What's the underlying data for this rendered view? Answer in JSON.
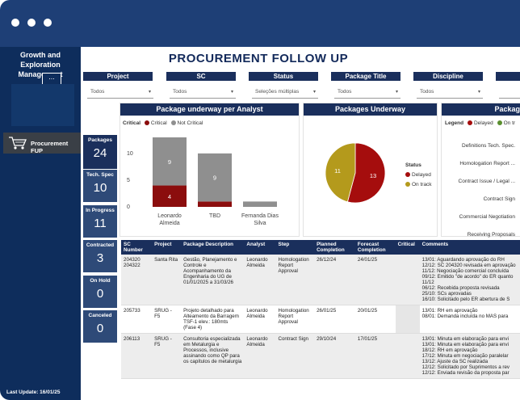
{
  "window": {
    "accent": "#1e3f76"
  },
  "sidebar": {
    "brand": "Growth and Exploration Management",
    "more_label": "...",
    "nav_item": "Procurement FUP",
    "last_update": "Last Update: 16/01/25"
  },
  "page_title": "PROCUREMENT FOLLOW UP",
  "filters": [
    {
      "label": "Project",
      "value": "Todos"
    },
    {
      "label": "SC",
      "value": "Todos"
    },
    {
      "label": "Status",
      "value": "Seleções múltiplas"
    },
    {
      "label": "Package Title",
      "value": "Todos"
    },
    {
      "label": "Discipline",
      "value": "Todos"
    }
  ],
  "kpis": [
    {
      "label": "Packages",
      "value": "24"
    },
    {
      "label": "Tech. Spec",
      "value": "10"
    },
    {
      "label": "In Progress",
      "value": "11"
    },
    {
      "label": "Contracted",
      "value": "3"
    },
    {
      "label": "On Hold",
      "value": "0"
    },
    {
      "label": "Canceled",
      "value": "0"
    }
  ],
  "analyst_panel": {
    "title": "Package underway per Analyst",
    "legend_title": "Critical",
    "legend": [
      {
        "name": "Critical",
        "color": "#8b0d0d"
      },
      {
        "name": "Not Critical",
        "color": "#8f8f8f"
      }
    ],
    "chart_data": {
      "type": "bar",
      "stacked": true,
      "categories": [
        "Leonardo Almeida",
        "TBD",
        "Fernanda Dias Silva"
      ],
      "series": [
        {
          "name": "Critical",
          "values": [
            4,
            1,
            0
          ],
          "color": "#8b0d0d"
        },
        {
          "name": "Not Critical",
          "values": [
            9,
            9,
            1
          ],
          "color": "#8f8f8f"
        }
      ],
      "ylim": [
        0,
        13
      ],
      "yticks": [
        0,
        5,
        10
      ],
      "data_labels": [
        {
          "series": 0,
          "index": 0,
          "text": "4"
        },
        {
          "series": 1,
          "index": 0,
          "text": "9"
        },
        {
          "series": 1,
          "index": 1,
          "text": "9"
        }
      ]
    }
  },
  "underway_panel": {
    "title": "Packages Underway",
    "legend_title": "Status",
    "chart_data": {
      "type": "pie",
      "labels": [
        "Delayed",
        "On track"
      ],
      "values": [
        13,
        11
      ],
      "colors": [
        "#a50d0d",
        "#b49a1c"
      ]
    }
  },
  "status_panel": {
    "title": "Packag",
    "legend_title": "Legend",
    "legend": [
      {
        "name": "Delayed",
        "color": "#a50d0d"
      },
      {
        "name": "On tr",
        "color": "#5a8f2f"
      }
    ],
    "steps": [
      "Definitions Tech. Spec.",
      "Homologation Report ...",
      "Contract Issue / Legal ...",
      "Contract Sign",
      "Commercial Negotiation",
      "Receiving Proposals"
    ]
  },
  "table": {
    "headers": [
      "SC Number",
      "Project",
      "Package Description",
      "Analyst",
      "Step",
      "Planned Completion",
      "Forecast Completion",
      "Critical",
      "Comments"
    ],
    "rows": [
      {
        "sc": "204320\n204322",
        "project": "Santa Rita",
        "desc": "Gestão, Planejamento e Controle e Acompanhamento da Engenharia do UG de 01/01/2025 a 31/03/26",
        "analyst": "Leonardo Almeida",
        "step": "Homologation Report Approval",
        "planned": "26/12/24",
        "forecast": "24/01/25",
        "critical": "",
        "comments": "13/01: Aguardando aprovação do RH\n12/12: SC 204320 revisada em aprovação\n11/12: Negociação comercial concluída\n09/12: Emitido \"de acordo\" do ER quanto\n11/12\n06/12: Recebida proposta revisada\n25/10: SCs aprovadas\n16/10: Solicitado pelo ER abertura de S"
      },
      {
        "sc": "205733",
        "project": "SRUG - F5",
        "desc": "Projeto detalhado para Alteamento da Barragem TSF-1 elev.: 180mts (Fase 4)",
        "analyst": "Leonardo Almeida",
        "step": "Homologation Report Approval",
        "planned": "26/01/25",
        "forecast": "20/01/25",
        "critical": "",
        "comments": "13/01: RH em aprovação\n08/01: Demanda incluída no MAS para"
      },
      {
        "sc": "206113",
        "project": "SRUG - F5",
        "desc": "Consultoria especializada em Metalurgia e Processos, inclusive assinando como QP para os capítulos de metalurgia",
        "analyst": "Leonardo Almeida",
        "step": "Contract Sign",
        "planned": "29/10/24",
        "forecast": "17/01/25",
        "critical": "",
        "comments": "13/01: Minuta em elaboração para envi\n13/01: Minuta em elaboração para envi\n18/12: RH em aprovação\n17/12: Minuta em negociação paralelar\n13/12: Ajuste da SC realizada\n12/12: Solicitado por Suprimentos a rev\n12/12: Enviada revisão da proposta par"
      }
    ]
  }
}
